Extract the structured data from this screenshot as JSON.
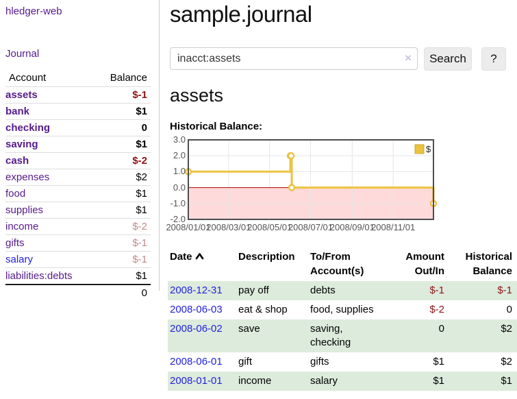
{
  "app": {
    "brand": "hledger-web"
  },
  "sidebar": {
    "journal_label": "Journal",
    "accounts": {
      "header_account": "Account",
      "header_balance": "Balance",
      "rows": [
        {
          "name": "assets",
          "balance": "$-1",
          "indent": 1,
          "bold": true,
          "balance_style": "neg",
          "link_style": "purple"
        },
        {
          "name": "bank",
          "balance": "$1",
          "indent": 2,
          "bold": true,
          "balance_style": "normal",
          "link_style": "purple"
        },
        {
          "name": "checking",
          "balance": "0",
          "indent": 3,
          "bold": true,
          "balance_style": "normal",
          "link_style": "purple"
        },
        {
          "name": "saving",
          "balance": "$1",
          "indent": 3,
          "bold": true,
          "balance_style": "normal",
          "link_style": "purple"
        },
        {
          "name": "cash",
          "balance": "$-2",
          "indent": 2,
          "bold": true,
          "balance_style": "neg",
          "link_style": "purple"
        },
        {
          "name": "expenses",
          "balance": "$2",
          "indent": 1,
          "bold": false,
          "balance_style": "normal",
          "link_style": "purple"
        },
        {
          "name": "food",
          "balance": "$1",
          "indent": 2,
          "bold": false,
          "balance_style": "normal",
          "link_style": "purple"
        },
        {
          "name": "supplies",
          "balance": "$1",
          "indent": 2,
          "bold": false,
          "balance_style": "normal",
          "link_style": "purple"
        },
        {
          "name": "income",
          "balance": "$-2",
          "indent": 1,
          "bold": false,
          "balance_style": "negdim",
          "link_style": "purple"
        },
        {
          "name": "gifts",
          "balance": "$-1",
          "indent": 2,
          "bold": false,
          "balance_style": "negdim",
          "link_style": "purple"
        },
        {
          "name": "salary",
          "balance": "$-1",
          "indent": 2,
          "bold": false,
          "balance_style": "negdim",
          "link_style": "blue"
        },
        {
          "name": "liabilities:debts",
          "balance": "$1",
          "indent": 1,
          "bold": false,
          "balance_style": "normal",
          "link_style": "purple"
        }
      ],
      "total": "0"
    }
  },
  "header": {
    "title": "sample.journal"
  },
  "search": {
    "value": "inacct:assets",
    "clear_icon": "×",
    "button_label": "Search",
    "help_label": "?"
  },
  "main": {
    "account_heading": "assets",
    "chart_label": "Historical Balance:"
  },
  "chart_data": {
    "type": "line",
    "step": true,
    "title": "Historical Balance",
    "series": [
      {
        "name": "$",
        "color": "#EDC240",
        "points": [
          [
            "2008-01-01",
            1
          ],
          [
            "2008-06-01",
            2
          ],
          [
            "2008-06-02",
            2
          ],
          [
            "2008-06-03",
            0
          ],
          [
            "2008-12-31",
            -1
          ]
        ]
      }
    ],
    "xlim": [
      "2008-01-01",
      "2008-12-31"
    ],
    "ylim": [
      -2,
      3
    ],
    "y_ticks": [
      3.0,
      2.0,
      1.0,
      0.0,
      -1.0,
      -2.0
    ],
    "x_ticks": [
      {
        "label": "2008/01/01",
        "date": "2008-01-01"
      },
      {
        "label": "2008/03/01",
        "date": "2008-03-01"
      },
      {
        "label": "2008/05/01",
        "date": "2008-05-01"
      },
      {
        "label": "2008/07/01",
        "date": "2008-07-01"
      },
      {
        "label": "2008/09/01",
        "date": "2008-09-01"
      },
      {
        "label": "2008/11/01",
        "date": "2008-11-01"
      }
    ],
    "legend": {
      "label": "$",
      "position": "top-right"
    },
    "grid": true,
    "zero_line_color": "#AA0000",
    "negative_region_fill": "rgba(255,150,150,0.35)",
    "border_color": "#4d4d4d",
    "gridline_color": "#e6e6e6",
    "tick_label_color": "#545454"
  },
  "register": {
    "headers": {
      "date": "Date",
      "sort_icon": "caret-up",
      "description": "Description",
      "accounts": "To/From Account(s)",
      "amount": "Amount Out/In",
      "balance": "Historical Balance"
    },
    "rows": [
      {
        "date": "2008-12-31",
        "description": "pay off",
        "accounts": "debts",
        "amount": "$-1",
        "amount_style": "neg",
        "balance": "$-1",
        "balance_style": "neg"
      },
      {
        "date": "2008-06-03",
        "description": "eat & shop",
        "accounts": "food, supplies",
        "amount": "$-2",
        "amount_style": "neg",
        "balance": "0",
        "balance_style": "normal"
      },
      {
        "date": "2008-06-02",
        "description": "save",
        "accounts": "saving, checking",
        "amount": "0",
        "amount_style": "normal",
        "balance": "$2",
        "balance_style": "normal"
      },
      {
        "date": "2008-06-01",
        "description": "gift",
        "accounts": "gifts",
        "amount": "$1",
        "amount_style": "normal",
        "balance": "$2",
        "balance_style": "normal"
      },
      {
        "date": "2008-01-01",
        "description": "income",
        "accounts": "salary",
        "amount": "$1",
        "amount_style": "normal",
        "balance": "$1",
        "balance_style": "normal"
      }
    ]
  },
  "colors": {
    "link_purple": "#551A8B",
    "link_blue": "#2222DD",
    "negative": "#8B1414",
    "negative_dim": "#C48888",
    "row_green": "#DDEBDD",
    "chart_line": "#EDC240",
    "zero_line": "#AA0000"
  }
}
